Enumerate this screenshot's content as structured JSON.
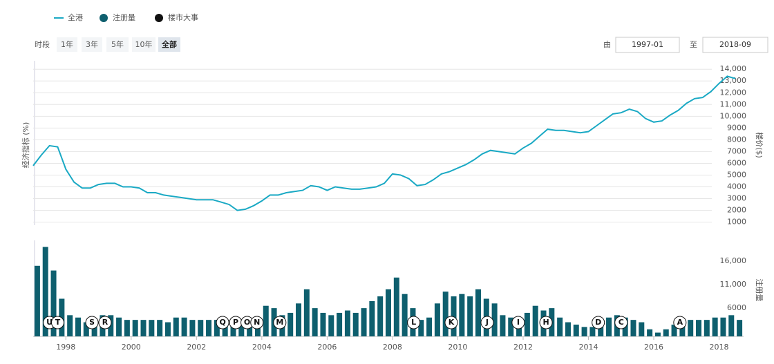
{
  "legend_title": null,
  "controls": {
    "period_label": "时段",
    "periods": [
      "1年",
      "3年",
      "5年",
      "10年",
      "全部"
    ],
    "from_label": "由",
    "from": "1997-01",
    "to_label": "至",
    "to": "2018-09"
  },
  "chart_data": [
    {
      "type": "line",
      "ylabel_left": "经济指标 (%)",
      "ylabel_right": "楼价($)",
      "x": [
        1997,
        1997.25,
        1997.5,
        1997.75,
        1998,
        1998.25,
        1998.5,
        1998.75,
        1999,
        1999.25,
        1999.5,
        1999.75,
        2000,
        2000.25,
        2000.5,
        2000.75,
        2001,
        2001.25,
        2001.5,
        2001.75,
        2002,
        2002.25,
        2002.5,
        2002.75,
        2003,
        2003.25,
        2003.5,
        2003.75,
        2004,
        2004.25,
        2004.5,
        2004.75,
        2005,
        2005.25,
        2005.5,
        2005.75,
        2006,
        2006.25,
        2006.5,
        2006.75,
        2007,
        2007.25,
        2007.5,
        2007.75,
        2008,
        2008.25,
        2008.5,
        2008.75,
        2009,
        2009.25,
        2009.5,
        2009.75,
        2010,
        2010.25,
        2010.5,
        2010.75,
        2011,
        2011.25,
        2011.5,
        2011.75,
        2012,
        2012.25,
        2012.5,
        2012.75,
        2013,
        2013.25,
        2013.5,
        2013.75,
        2014,
        2014.25,
        2014.5,
        2014.75,
        2015,
        2015.25,
        2015.5,
        2015.75,
        2016,
        2016.25,
        2016.5,
        2016.75,
        2017,
        2017.25,
        2017.5,
        2017.75,
        2018,
        2018.25,
        2018.5
      ],
      "xlim": [
        1997,
        2018.75
      ],
      "series": [
        {
          "name": "全港",
          "color": "#1aa9c4",
          "values": [
            5800,
            6700,
            7500,
            7400,
            5500,
            4400,
            3900,
            3900,
            4200,
            4300,
            4300,
            4000,
            4000,
            3900,
            3500,
            3500,
            3300,
            3200,
            3100,
            3000,
            2900,
            2900,
            2900,
            2700,
            2500,
            2000,
            2100,
            2400,
            2800,
            3300,
            3300,
            3500,
            3600,
            3700,
            4100,
            4000,
            3700,
            4000,
            3900,
            3800,
            3800,
            3900,
            4000,
            4300,
            5100,
            5000,
            4700,
            4100,
            4200,
            4600,
            5100,
            5300,
            5600,
            5900,
            6300,
            6800,
            7100,
            7000,
            6900,
            6800,
            7300,
            7700,
            8300,
            8900,
            8800,
            8800,
            8700,
            8600,
            8700,
            9200,
            9700,
            10200,
            10300,
            10600,
            10400,
            9800,
            9500,
            9600,
            10100,
            10500,
            11100,
            11500,
            11600,
            12100,
            12800,
            13400,
            13200
          ]
        }
      ],
      "ylim": [
        800,
        14600
      ],
      "yticks": [
        1000,
        2000,
        3000,
        4000,
        5000,
        6000,
        7000,
        8000,
        9000,
        {
          "value": 10000,
          "label": "10,000"
        },
        {
          "value": 11000,
          "label": "11,000"
        },
        {
          "value": 12000,
          "label": "12,000"
        },
        {
          "value": 13000,
          "label": "13,000"
        },
        {
          "value": 14000,
          "label": "14,000"
        }
      ],
      "grid": true
    },
    {
      "type": "bar",
      "ylabel_right": "注册量",
      "x": [
        1997,
        1997.25,
        1997.5,
        1997.75,
        1998,
        1998.25,
        1998.5,
        1998.75,
        1999,
        1999.25,
        1999.5,
        1999.75,
        2000,
        2000.25,
        2000.5,
        2000.75,
        2001,
        2001.25,
        2001.5,
        2001.75,
        2002,
        2002.25,
        2002.5,
        2002.75,
        2003,
        2003.25,
        2003.5,
        2003.75,
        2004,
        2004.25,
        2004.5,
        2004.75,
        2005,
        2005.25,
        2005.5,
        2005.75,
        2006,
        2006.25,
        2006.5,
        2006.75,
        2007,
        2007.25,
        2007.5,
        2007.75,
        2008,
        2008.25,
        2008.5,
        2008.75,
        2009,
        2009.25,
        2009.5,
        2009.75,
        2010,
        2010.25,
        2010.5,
        2010.75,
        2011,
        2011.25,
        2011.5,
        2011.75,
        2012,
        2012.25,
        2012.5,
        2012.75,
        2013,
        2013.25,
        2013.5,
        2013.75,
        2014,
        2014.25,
        2014.5,
        2014.75,
        2015,
        2015.25,
        2015.5,
        2015.75,
        2016,
        2016.25,
        2016.5,
        2016.75,
        2017,
        2017.25,
        2017.5,
        2017.75,
        2018,
        2018.25,
        2018.5
      ],
      "xlim": [
        1997,
        2018.75
      ],
      "xticks": [
        1998,
        2000,
        2002,
        2004,
        2006,
        2008,
        2010,
        2012,
        2014,
        2016,
        2018
      ],
      "series": [
        {
          "name": "注册量",
          "color": "#0e5f6e",
          "values": [
            15000,
            19000,
            14000,
            8000,
            4500,
            4000,
            3000,
            3500,
            4500,
            4500,
            4000,
            3500,
            3500,
            3500,
            3500,
            3500,
            3000,
            4000,
            4000,
            3500,
            3500,
            3500,
            3500,
            3500,
            3000,
            2500,
            3000,
            4000,
            6500,
            6000,
            4500,
            5000,
            7000,
            10000,
            6000,
            5000,
            4500,
            5000,
            5500,
            5000,
            6000,
            7500,
            8500,
            10000,
            12500,
            9000,
            6000,
            3500,
            4000,
            7000,
            9500,
            8500,
            9000,
            8500,
            10000,
            8000,
            7000,
            4500,
            4000,
            3000,
            5000,
            6500,
            5500,
            6000,
            4000,
            3000,
            2500,
            2000,
            2000,
            3500,
            4000,
            4500,
            4000,
            3500,
            3000,
            1500,
            800,
            1500,
            2500,
            3500,
            3500,
            3500,
            3500,
            4000,
            4000,
            4500,
            3500
          ]
        }
      ],
      "ylim": [
        0,
        20400
      ],
      "yticks": [
        6000,
        {
          "value": 11000,
          "label": "11,000"
        },
        {
          "value": 16000,
          "label": "16,000"
        }
      ],
      "events": {
        "name": "楼市大事",
        "color": "#111111",
        "items": [
          {
            "label": "U",
            "x": 1997.5
          },
          {
            "label": "T",
            "x": 1997.75
          },
          {
            "label": "S",
            "x": 1998.8
          },
          {
            "label": "R",
            "x": 1999.2
          },
          {
            "label": "Q",
            "x": 2002.8
          },
          {
            "label": "P",
            "x": 2003.2
          },
          {
            "label": "O",
            "x": 2003.55
          },
          {
            "label": "N",
            "x": 2003.85
          },
          {
            "label": "M",
            "x": 2004.55
          },
          {
            "label": "L",
            "x": 2008.65
          },
          {
            "label": "K",
            "x": 2009.8
          },
          {
            "label": "J",
            "x": 2010.9
          },
          {
            "label": "I",
            "x": 2011.85
          },
          {
            "label": "H",
            "x": 2012.7
          },
          {
            "label": "D",
            "x": 2014.3
          },
          {
            "label": "C",
            "x": 2015.0
          },
          {
            "label": "A",
            "x": 2016.8
          }
        ]
      }
    }
  ]
}
